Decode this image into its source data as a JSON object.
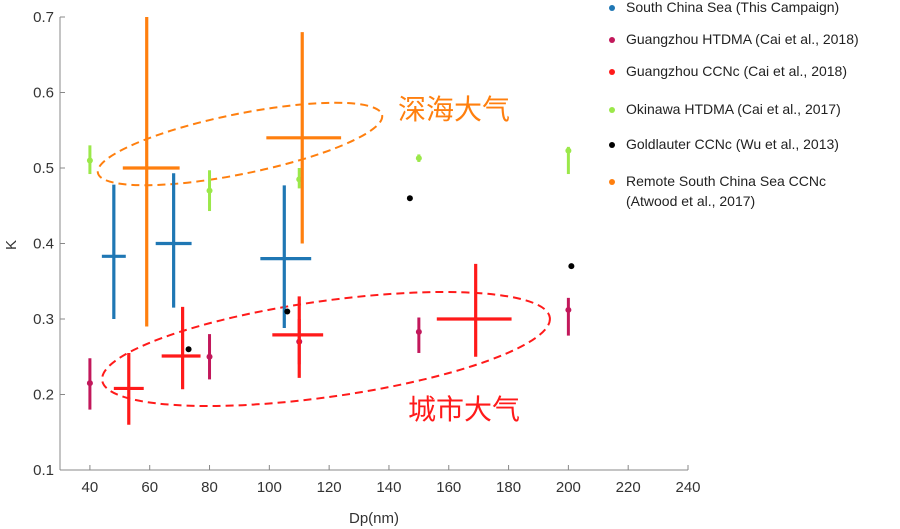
{
  "chart_data": {
    "type": "scatter",
    "title": "",
    "xlabel": "Dp(nm)",
    "ylabel": "K",
    "xlim": [
      30,
      240
    ],
    "ylim": [
      0.1,
      0.7
    ],
    "x_ticks": [
      40,
      60,
      80,
      100,
      120,
      140,
      160,
      180,
      200,
      220,
      240
    ],
    "y_ticks": [
      0.1,
      0.2,
      0.3,
      0.4,
      0.5,
      0.6,
      0.7
    ],
    "grid": false,
    "legend_position": "right",
    "series": [
      {
        "name": "South China Sea (This Campaign)",
        "line1": "South China Sea (This Campaign)",
        "color": "#1f77b4",
        "marker": "cross",
        "points": [
          {
            "x": 48,
            "y": 0.383,
            "yerr_low": 0.3,
            "yerr_high": 0.478,
            "xerr_low": 44,
            "xerr_high": 52
          },
          {
            "x": 68,
            "y": 0.4,
            "yerr_low": 0.315,
            "yerr_high": 0.493,
            "xerr_low": 62,
            "xerr_high": 74
          },
          {
            "x": 105,
            "y": 0.38,
            "yerr_low": 0.288,
            "yerr_high": 0.477,
            "xerr_low": 97,
            "xerr_high": 114
          }
        ]
      },
      {
        "name": "Guangzhou HTDMA (Cai et al., 2018)",
        "line1": "Guangzhou HTDMA (Cai et al., 2018)",
        "color": "#c2185b",
        "marker": "dot-errorbar",
        "points": [
          {
            "x": 40,
            "y": 0.215,
            "yerr_low": 0.18,
            "yerr_high": 0.248
          },
          {
            "x": 80,
            "y": 0.25,
            "yerr_low": 0.22,
            "yerr_high": 0.28
          },
          {
            "x": 110,
            "y": 0.27,
            "yerr_low": 0.24,
            "yerr_high": 0.3
          },
          {
            "x": 150,
            "y": 0.283,
            "yerr_low": 0.255,
            "yerr_high": 0.302
          },
          {
            "x": 200,
            "y": 0.312,
            "yerr_low": 0.278,
            "yerr_high": 0.328
          }
        ]
      },
      {
        "name": "Guangzhou CCNc (Cai et al., 2018)",
        "line1": "Guangzhou CCNc (Cai et al., 2018)",
        "color": "#ff1a1a",
        "marker": "cross",
        "points": [
          {
            "x": 53,
            "y": 0.208,
            "yerr_low": 0.16,
            "yerr_high": 0.255,
            "xerr_low": 48,
            "xerr_high": 58
          },
          {
            "x": 71,
            "y": 0.251,
            "yerr_low": 0.207,
            "yerr_high": 0.316,
            "xerr_low": 64,
            "xerr_high": 77
          },
          {
            "x": 110,
            "y": 0.279,
            "yerr_low": 0.222,
            "yerr_high": 0.33,
            "xerr_low": 101,
            "xerr_high": 118
          },
          {
            "x": 169,
            "y": 0.3,
            "yerr_low": 0.25,
            "yerr_high": 0.373,
            "xerr_low": 156,
            "xerr_high": 181
          }
        ]
      },
      {
        "name": "Okinawa HTDMA (Cai et al., 2017)",
        "line1": "Okinawa HTDMA (Cai et al., 2017)",
        "color": "#9be84a",
        "marker": "dot-errorbar",
        "points": [
          {
            "x": 40,
            "y": 0.51,
            "yerr_low": 0.492,
            "yerr_high": 0.53
          },
          {
            "x": 80,
            "y": 0.47,
            "yerr_low": 0.443,
            "yerr_high": 0.497
          },
          {
            "x": 110,
            "y": 0.485,
            "yerr_low": 0.473,
            "yerr_high": 0.5
          },
          {
            "x": 150,
            "y": 0.513,
            "yerr_low": 0.508,
            "yerr_high": 0.518
          },
          {
            "x": 200,
            "y": 0.523,
            "yerr_low": 0.492,
            "yerr_high": 0.528
          }
        ]
      },
      {
        "name": "Goldlauter CCNc (Wu et al., 2013)",
        "line1": "Goldlauter CCNc (Wu et al., 2013)",
        "color": "#000000",
        "marker": "dot",
        "points": [
          {
            "x": 73,
            "y": 0.26
          },
          {
            "x": 106,
            "y": 0.31
          },
          {
            "x": 147,
            "y": 0.46
          },
          {
            "x": 201,
            "y": 0.37
          }
        ]
      },
      {
        "name": "Remote South China Sea CCNc (Atwood et al., 2017)",
        "line1": "Remote South China Sea CCNc",
        "line2": "(Atwood et al., 2017)",
        "color": "#ff7f0e",
        "marker": "cross",
        "points": [
          {
            "x": 59,
            "y": 0.5,
            "yerr_low": 0.29,
            "yerr_high": 0.7,
            "xerr_low": 51,
            "xerr_high": 70
          },
          {
            "x": 111,
            "y": 0.54,
            "yerr_low": 0.4,
            "yerr_high": 0.68,
            "xerr_low": 99,
            "xerr_high": 124
          }
        ]
      }
    ],
    "annotations": [
      {
        "text": "深海大气",
        "color": "#ff7f0e"
      },
      {
        "text": "城市大气",
        "color": "#ff1a1a"
      }
    ]
  }
}
